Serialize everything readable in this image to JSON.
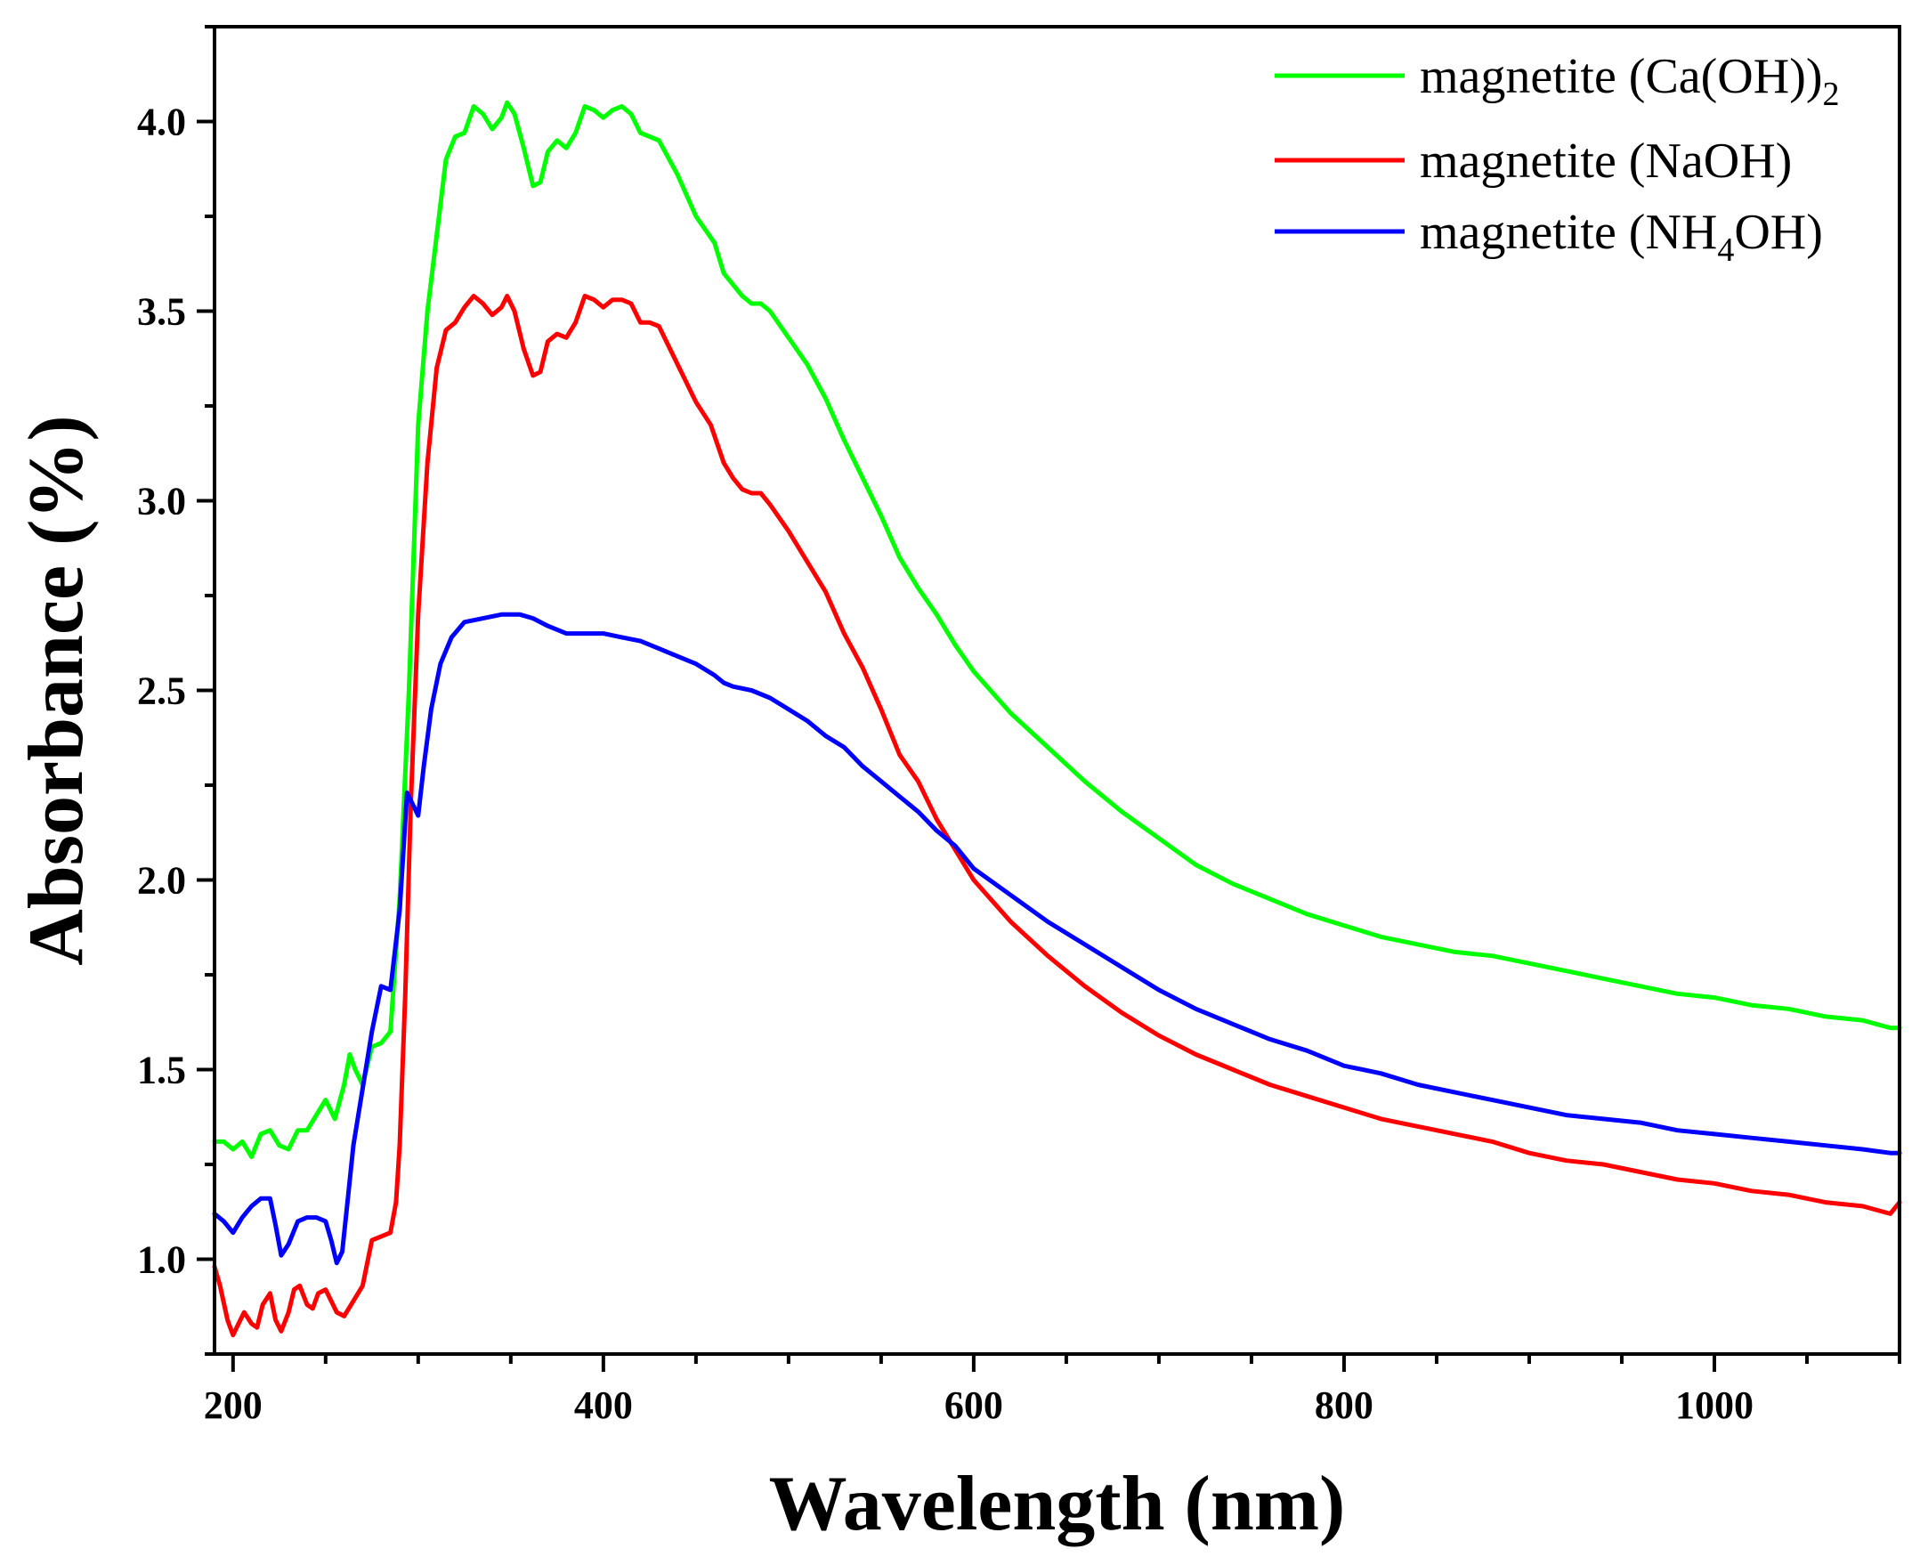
{
  "chart_data": {
    "type": "line",
    "title": "",
    "xlabel": "Wavelength (nm)",
    "ylabel": "Absorbance (%)",
    "xlim": [
      190,
      1100
    ],
    "ylim": [
      0.75,
      4.25
    ],
    "x_ticks": [
      200,
      400,
      600,
      800,
      1000
    ],
    "x_tick_labels": [
      "200",
      "400",
      "600",
      "800",
      "1000"
    ],
    "y_ticks": [
      1.0,
      1.5,
      2.0,
      2.5,
      3.0,
      3.5,
      4.0
    ],
    "y_tick_labels": [
      "1.0",
      "1.5",
      "2.0",
      "2.5",
      "3.0",
      "3.5",
      "4.0"
    ],
    "grid": false,
    "legend": "top-right",
    "series": [
      {
        "name": "magnetite (Ca(OH))2",
        "legend_main": "magnetite (Ca(OH))",
        "legend_sub": "2",
        "color": "#00ff00",
        "points": [
          [
            190,
            1.31
          ],
          [
            195,
            1.31
          ],
          [
            200,
            1.29
          ],
          [
            205,
            1.31
          ],
          [
            210,
            1.27
          ],
          [
            215,
            1.33
          ],
          [
            220,
            1.34
          ],
          [
            225,
            1.3
          ],
          [
            230,
            1.29
          ],
          [
            235,
            1.34
          ],
          [
            240,
            1.34
          ],
          [
            245,
            1.38
          ],
          [
            250,
            1.42
          ],
          [
            255,
            1.37
          ],
          [
            260,
            1.46
          ],
          [
            263,
            1.54
          ],
          [
            266,
            1.5
          ],
          [
            270,
            1.46
          ],
          [
            275,
            1.56
          ],
          [
            280,
            1.57
          ],
          [
            285,
            1.6
          ],
          [
            290,
            1.95
          ],
          [
            295,
            2.5
          ],
          [
            300,
            3.2
          ],
          [
            305,
            3.5
          ],
          [
            310,
            3.7
          ],
          [
            315,
            3.9
          ],
          [
            320,
            3.96
          ],
          [
            325,
            3.97
          ],
          [
            330,
            4.04
          ],
          [
            335,
            4.02
          ],
          [
            340,
            3.98
          ],
          [
            345,
            4.01
          ],
          [
            348,
            4.05
          ],
          [
            352,
            4.02
          ],
          [
            357,
            3.93
          ],
          [
            362,
            3.83
          ],
          [
            366,
            3.84
          ],
          [
            370,
            3.92
          ],
          [
            375,
            3.95
          ],
          [
            380,
            3.93
          ],
          [
            385,
            3.97
          ],
          [
            390,
            4.04
          ],
          [
            395,
            4.03
          ],
          [
            400,
            4.01
          ],
          [
            405,
            4.03
          ],
          [
            410,
            4.04
          ],
          [
            415,
            4.02
          ],
          [
            420,
            3.97
          ],
          [
            425,
            3.96
          ],
          [
            430,
            3.95
          ],
          [
            440,
            3.86
          ],
          [
            450,
            3.75
          ],
          [
            460,
            3.68
          ],
          [
            465,
            3.6
          ],
          [
            470,
            3.57
          ],
          [
            475,
            3.54
          ],
          [
            480,
            3.52
          ],
          [
            485,
            3.52
          ],
          [
            490,
            3.5
          ],
          [
            500,
            3.43
          ],
          [
            510,
            3.36
          ],
          [
            520,
            3.27
          ],
          [
            530,
            3.16
          ],
          [
            540,
            3.06
          ],
          [
            550,
            2.96
          ],
          [
            560,
            2.85
          ],
          [
            570,
            2.77
          ],
          [
            580,
            2.7
          ],
          [
            590,
            2.62
          ],
          [
            600,
            2.55
          ],
          [
            620,
            2.44
          ],
          [
            640,
            2.35
          ],
          [
            660,
            2.26
          ],
          [
            680,
            2.18
          ],
          [
            700,
            2.11
          ],
          [
            720,
            2.04
          ],
          [
            740,
            1.99
          ],
          [
            760,
            1.95
          ],
          [
            780,
            1.91
          ],
          [
            800,
            1.88
          ],
          [
            820,
            1.85
          ],
          [
            840,
            1.83
          ],
          [
            860,
            1.81
          ],
          [
            880,
            1.8
          ],
          [
            900,
            1.78
          ],
          [
            920,
            1.76
          ],
          [
            940,
            1.74
          ],
          [
            960,
            1.72
          ],
          [
            980,
            1.7
          ],
          [
            1000,
            1.69
          ],
          [
            1020,
            1.67
          ],
          [
            1040,
            1.66
          ],
          [
            1060,
            1.64
          ],
          [
            1080,
            1.63
          ],
          [
            1095,
            1.61
          ],
          [
            1100,
            1.61
          ]
        ]
      },
      {
        "name": "magnetite (NaOH)",
        "legend_main": "magnetite (NaOH)",
        "legend_sub": "",
        "color": "#ff0000",
        "points": [
          [
            190,
            0.98
          ],
          [
            193,
            0.93
          ],
          [
            197,
            0.84
          ],
          [
            200,
            0.8
          ],
          [
            203,
            0.83
          ],
          [
            206,
            0.86
          ],
          [
            210,
            0.83
          ],
          [
            213,
            0.82
          ],
          [
            216,
            0.88
          ],
          [
            220,
            0.91
          ],
          [
            223,
            0.84
          ],
          [
            226,
            0.81
          ],
          [
            230,
            0.86
          ],
          [
            233,
            0.92
          ],
          [
            236,
            0.93
          ],
          [
            240,
            0.88
          ],
          [
            243,
            0.87
          ],
          [
            246,
            0.91
          ],
          [
            250,
            0.92
          ],
          [
            253,
            0.89
          ],
          [
            256,
            0.86
          ],
          [
            260,
            0.85
          ],
          [
            265,
            0.89
          ],
          [
            270,
            0.93
          ],
          [
            275,
            1.05
          ],
          [
            280,
            1.06
          ],
          [
            285,
            1.07
          ],
          [
            288,
            1.15
          ],
          [
            290,
            1.3
          ],
          [
            293,
            1.7
          ],
          [
            296,
            2.2
          ],
          [
            300,
            2.7
          ],
          [
            305,
            3.1
          ],
          [
            310,
            3.35
          ],
          [
            315,
            3.45
          ],
          [
            320,
            3.47
          ],
          [
            325,
            3.51
          ],
          [
            330,
            3.54
          ],
          [
            335,
            3.52
          ],
          [
            340,
            3.49
          ],
          [
            345,
            3.51
          ],
          [
            348,
            3.54
          ],
          [
            352,
            3.5
          ],
          [
            357,
            3.4
          ],
          [
            362,
            3.33
          ],
          [
            366,
            3.34
          ],
          [
            370,
            3.42
          ],
          [
            375,
            3.44
          ],
          [
            380,
            3.43
          ],
          [
            385,
            3.47
          ],
          [
            390,
            3.54
          ],
          [
            395,
            3.53
          ],
          [
            400,
            3.51
          ],
          [
            405,
            3.53
          ],
          [
            410,
            3.53
          ],
          [
            415,
            3.52
          ],
          [
            420,
            3.47
          ],
          [
            425,
            3.47
          ],
          [
            430,
            3.46
          ],
          [
            440,
            3.36
          ],
          [
            450,
            3.26
          ],
          [
            458,
            3.2
          ],
          [
            465,
            3.1
          ],
          [
            470,
            3.06
          ],
          [
            475,
            3.03
          ],
          [
            480,
            3.02
          ],
          [
            485,
            3.02
          ],
          [
            490,
            2.99
          ],
          [
            500,
            2.92
          ],
          [
            510,
            2.84
          ],
          [
            520,
            2.76
          ],
          [
            530,
            2.65
          ],
          [
            540,
            2.56
          ],
          [
            550,
            2.45
          ],
          [
            560,
            2.33
          ],
          [
            570,
            2.26
          ],
          [
            580,
            2.16
          ],
          [
            590,
            2.08
          ],
          [
            600,
            2.0
          ],
          [
            620,
            1.89
          ],
          [
            640,
            1.8
          ],
          [
            660,
            1.72
          ],
          [
            680,
            1.65
          ],
          [
            700,
            1.59
          ],
          [
            720,
            1.54
          ],
          [
            740,
            1.5
          ],
          [
            760,
            1.46
          ],
          [
            780,
            1.43
          ],
          [
            800,
            1.4
          ],
          [
            820,
            1.37
          ],
          [
            840,
            1.35
          ],
          [
            860,
            1.33
          ],
          [
            880,
            1.31
          ],
          [
            900,
            1.28
          ],
          [
            920,
            1.26
          ],
          [
            940,
            1.25
          ],
          [
            960,
            1.23
          ],
          [
            980,
            1.21
          ],
          [
            1000,
            1.2
          ],
          [
            1020,
            1.18
          ],
          [
            1040,
            1.17
          ],
          [
            1060,
            1.15
          ],
          [
            1080,
            1.14
          ],
          [
            1095,
            1.12
          ],
          [
            1100,
            1.15
          ]
        ]
      },
      {
        "name": "magnetite (NH4OH)",
        "legend_main": "magnetite (NH",
        "legend_sub": "4",
        "legend_tail": "OH)",
        "color": "#0000ff",
        "points": [
          [
            190,
            1.12
          ],
          [
            195,
            1.1
          ],
          [
            200,
            1.07
          ],
          [
            205,
            1.11
          ],
          [
            210,
            1.14
          ],
          [
            215,
            1.16
          ],
          [
            220,
            1.16
          ],
          [
            223,
            1.09
          ],
          [
            226,
            1.01
          ],
          [
            230,
            1.04
          ],
          [
            235,
            1.1
          ],
          [
            240,
            1.11
          ],
          [
            245,
            1.11
          ],
          [
            250,
            1.1
          ],
          [
            253,
            1.05
          ],
          [
            256,
            0.99
          ],
          [
            259,
            1.02
          ],
          [
            262,
            1.16
          ],
          [
            265,
            1.3
          ],
          [
            270,
            1.45
          ],
          [
            275,
            1.6
          ],
          [
            280,
            1.72
          ],
          [
            285,
            1.71
          ],
          [
            290,
            1.92
          ],
          [
            294,
            2.23
          ],
          [
            297,
            2.2
          ],
          [
            300,
            2.17
          ],
          [
            303,
            2.3
          ],
          [
            307,
            2.45
          ],
          [
            312,
            2.57
          ],
          [
            318,
            2.64
          ],
          [
            325,
            2.68
          ],
          [
            335,
            2.69
          ],
          [
            345,
            2.7
          ],
          [
            355,
            2.7
          ],
          [
            362,
            2.69
          ],
          [
            370,
            2.67
          ],
          [
            375,
            2.66
          ],
          [
            380,
            2.65
          ],
          [
            390,
            2.65
          ],
          [
            400,
            2.65
          ],
          [
            410,
            2.64
          ],
          [
            420,
            2.63
          ],
          [
            430,
            2.61
          ],
          [
            440,
            2.59
          ],
          [
            450,
            2.57
          ],
          [
            460,
            2.54
          ],
          [
            465,
            2.52
          ],
          [
            470,
            2.51
          ],
          [
            480,
            2.5
          ],
          [
            490,
            2.48
          ],
          [
            500,
            2.45
          ],
          [
            510,
            2.42
          ],
          [
            520,
            2.38
          ],
          [
            530,
            2.35
          ],
          [
            540,
            2.3
          ],
          [
            550,
            2.26
          ],
          [
            560,
            2.22
          ],
          [
            570,
            2.18
          ],
          [
            580,
            2.13
          ],
          [
            590,
            2.09
          ],
          [
            600,
            2.03
          ],
          [
            620,
            1.96
          ],
          [
            640,
            1.89
          ],
          [
            660,
            1.83
          ],
          [
            680,
            1.77
          ],
          [
            700,
            1.71
          ],
          [
            720,
            1.66
          ],
          [
            740,
            1.62
          ],
          [
            760,
            1.58
          ],
          [
            780,
            1.55
          ],
          [
            800,
            1.51
          ],
          [
            820,
            1.49
          ],
          [
            840,
            1.46
          ],
          [
            860,
            1.44
          ],
          [
            880,
            1.42
          ],
          [
            900,
            1.4
          ],
          [
            920,
            1.38
          ],
          [
            940,
            1.37
          ],
          [
            960,
            1.36
          ],
          [
            980,
            1.34
          ],
          [
            1000,
            1.33
          ],
          [
            1020,
            1.32
          ],
          [
            1040,
            1.31
          ],
          [
            1060,
            1.3
          ],
          [
            1080,
            1.29
          ],
          [
            1095,
            1.28
          ],
          [
            1100,
            1.28
          ]
        ]
      }
    ]
  }
}
